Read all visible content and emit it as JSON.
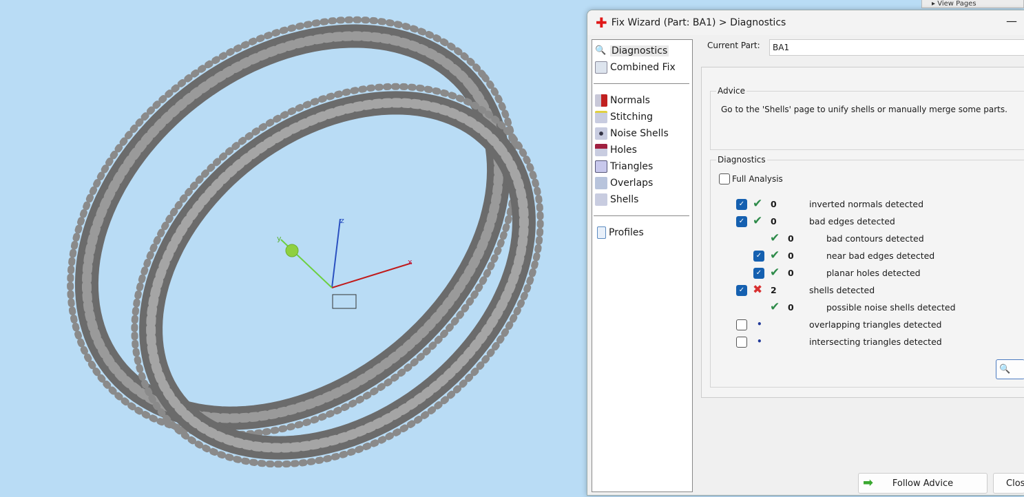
{
  "viewport": {
    "axis_x": "x",
    "axis_y": "y",
    "axis_z": "z",
    "bg": "#b9dcf5"
  },
  "viewpages": "View Pages",
  "dialog": {
    "title": "Fix Wizard (Part: BA1) > Diagnostics",
    "minimize": "—",
    "sidebar": {
      "top": [
        {
          "label": "Diagnostics",
          "icon": "magnifier-icon"
        },
        {
          "label": "Combined Fix",
          "icon": "pages-icon"
        }
      ],
      "mid": [
        {
          "label": "Normals",
          "icon": "cube-red-icon"
        },
        {
          "label": "Stitching",
          "icon": "cube-stitch-icon"
        },
        {
          "label": "Noise Shells",
          "icon": "dice-icon"
        },
        {
          "label": "Holes",
          "icon": "cube-hole-icon"
        },
        {
          "label": "Triangles",
          "icon": "triangles-icon"
        },
        {
          "label": "Overlaps",
          "icon": "overlap-icon"
        },
        {
          "label": "Shells",
          "icon": "cube-icon"
        }
      ],
      "bottom": [
        {
          "label": "Profiles",
          "icon": "document-icon"
        }
      ]
    },
    "current_part_label": "Current Part:",
    "current_part_value": "BA1",
    "advice": {
      "title": "Advice",
      "text": "Go to the 'Shells' page to unify shells or manually merge some parts."
    },
    "diagnostics": {
      "title": "Diagnostics",
      "full_analysis": "Full Analysis",
      "full_analysis_checked": false,
      "rows": [
        {
          "checked": true,
          "status": "ok",
          "value": "0",
          "label": "inverted normals detected",
          "level": 0
        },
        {
          "checked": true,
          "status": "ok",
          "value": "0",
          "label": "bad edges detected",
          "level": 0
        },
        {
          "checked": null,
          "status": "ok",
          "value": "0",
          "label": "bad contours detected",
          "level": 1
        },
        {
          "checked": true,
          "status": "ok",
          "value": "0",
          "label": "near bad edges detected",
          "level": 1
        },
        {
          "checked": true,
          "status": "ok",
          "value": "0",
          "label": "planar holes detected",
          "level": 1
        },
        {
          "checked": true,
          "status": "error",
          "value": "2",
          "label": "shells detected",
          "level": 0
        },
        {
          "checked": null,
          "status": "ok",
          "value": "0",
          "label": "possible noise shells detected",
          "level": 1
        },
        {
          "checked": false,
          "status": "pending",
          "value": "",
          "label": "overlapping triangles detected",
          "level": 0
        },
        {
          "checked": false,
          "status": "pending",
          "value": "",
          "label": "intersecting triangles detected",
          "level": 0
        }
      ]
    },
    "follow_advice": "Follow Advice",
    "close": "Clos"
  }
}
